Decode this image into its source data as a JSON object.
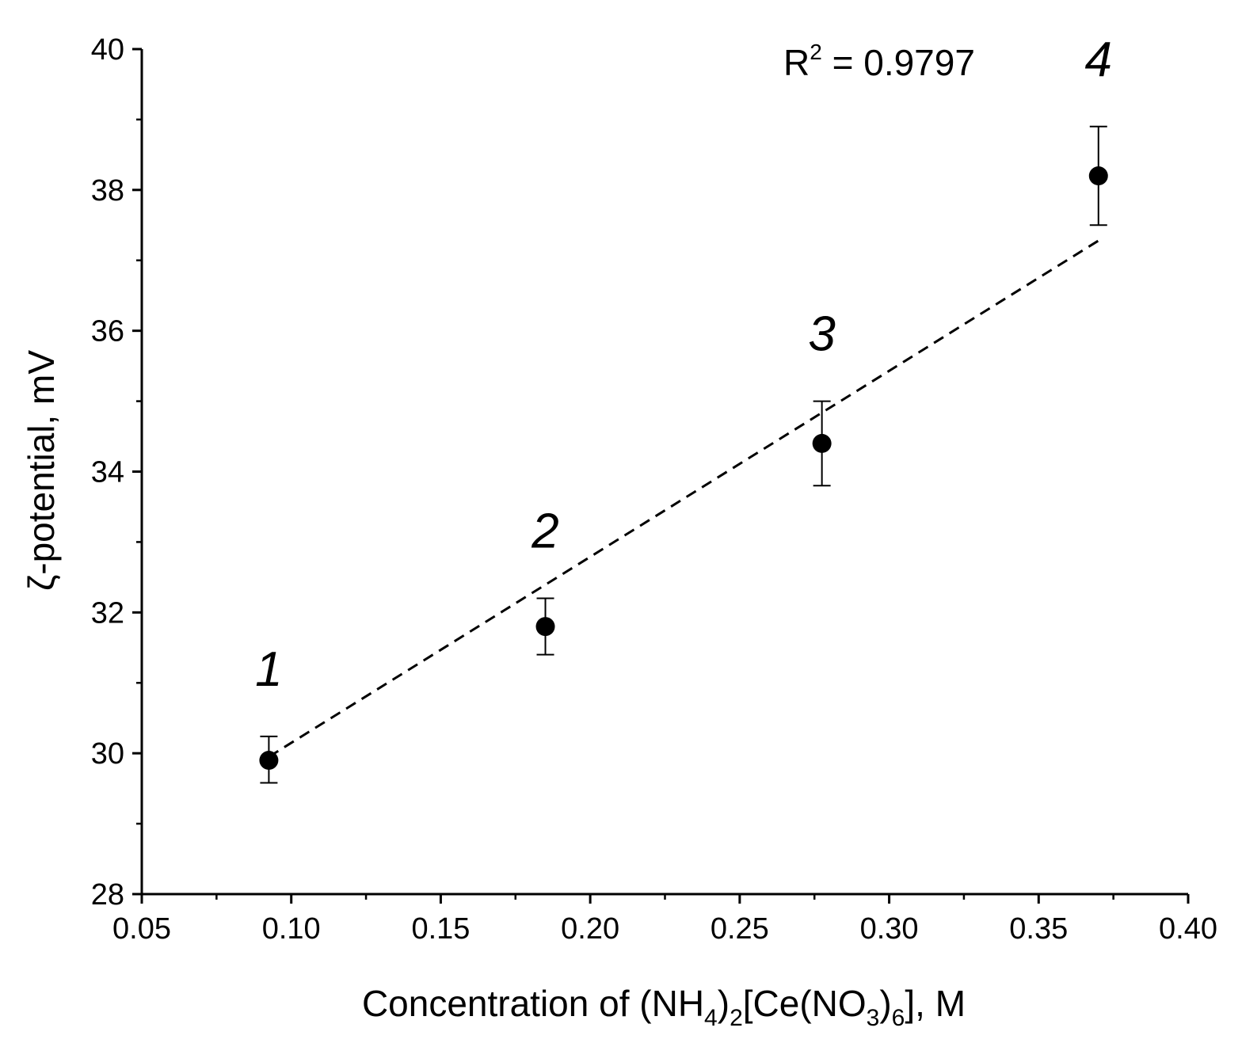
{
  "chart_data": {
    "type": "scatter",
    "title": "",
    "xlabel": {
      "prefix": "Concentration of (NH",
      "sub1": "4",
      "mid1": ")",
      "sub2": "2",
      "mid2": "[Ce(NO",
      "sub3": "3",
      "mid3": ")",
      "sub4": "6",
      "suffix": "], M"
    },
    "ylabel": "ζ-potential, mV",
    "xlim": [
      0.05,
      0.4
    ],
    "ylim": [
      28,
      40
    ],
    "x_ticks": [
      "0.05",
      "0.10",
      "0.15",
      "0.20",
      "0.25",
      "0.30",
      "0.35",
      "0.40"
    ],
    "y_ticks": [
      "28",
      "30",
      "32",
      "34",
      "36",
      "38",
      "40"
    ],
    "points": [
      {
        "label": "1",
        "x": 0.0925,
        "y": 29.9,
        "err_low": 29.58,
        "err_high": 30.24
      },
      {
        "label": "2",
        "x": 0.185,
        "y": 31.8,
        "err_low": 31.4,
        "err_high": 32.2
      },
      {
        "label": "3",
        "x": 0.2775,
        "y": 34.4,
        "err_low": 33.8,
        "err_high": 35.0
      },
      {
        "label": "4",
        "x": 0.37,
        "y": 38.2,
        "err_low": 37.5,
        "err_high": 38.9
      }
    ],
    "fit_line": {
      "style": "dashed",
      "x": [
        0.0925,
        0.37
      ],
      "y": [
        29.95,
        37.28
      ]
    },
    "annotation": {
      "base": "R",
      "sup": "2",
      "rest": " = 0.9797"
    },
    "grid": false,
    "legend": "none"
  }
}
